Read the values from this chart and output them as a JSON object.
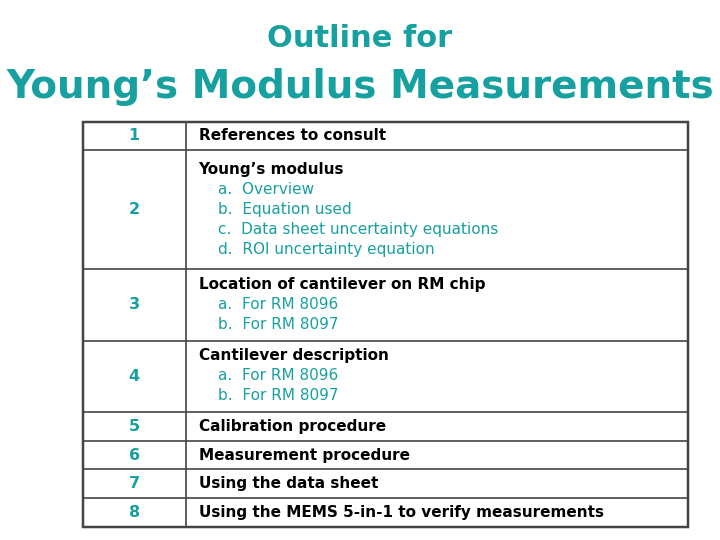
{
  "title_line1": "Outline for",
  "title_line2": "Young’s Modulus Measurements",
  "title_color": "#17a0a0",
  "background_color": "#ffffff",
  "table_rows": [
    {
      "num": "1",
      "content_lines": [
        "References to consult"
      ],
      "content_colors": [
        "#000000"
      ]
    },
    {
      "num": "2",
      "content_lines": [
        "Young’s modulus",
        "a.  Overview",
        "b.  Equation used",
        "c.  Data sheet uncertainty equations",
        "d.  ROI uncertainty equation"
      ],
      "content_colors": [
        "#000000",
        "#17a0a0",
        "#17a0a0",
        "#17a0a0",
        "#17a0a0"
      ]
    },
    {
      "num": "3",
      "content_lines": [
        "Location of cantilever on RM chip",
        "a.  For RM 8096",
        "b.  For RM 8097"
      ],
      "content_colors": [
        "#000000",
        "#17a0a0",
        "#17a0a0"
      ]
    },
    {
      "num": "4",
      "content_lines": [
        "Cantilever description",
        "a.  For RM 8096",
        "b.  For RM 8097"
      ],
      "content_colors": [
        "#000000",
        "#17a0a0",
        "#17a0a0"
      ]
    },
    {
      "num": "5",
      "content_lines": [
        "Calibration procedure"
      ],
      "content_colors": [
        "#000000"
      ]
    },
    {
      "num": "6",
      "content_lines": [
        "Measurement procedure"
      ],
      "content_colors": [
        "#000000"
      ]
    },
    {
      "num": "7",
      "content_lines": [
        "Using the data sheet"
      ],
      "content_colors": [
        "#000000"
      ]
    },
    {
      "num": "8",
      "content_lines": [
        "Using the MEMS 5-in-1 to verify measurements"
      ],
      "content_colors": [
        "#000000"
      ]
    }
  ],
  "num_color": "#17a0a0",
  "border_color": "#444444",
  "title1_fontsize": 22,
  "title2_fontsize": 28,
  "table_fontsize": 11,
  "fig_width": 7.2,
  "fig_height": 5.4,
  "dpi": 100
}
